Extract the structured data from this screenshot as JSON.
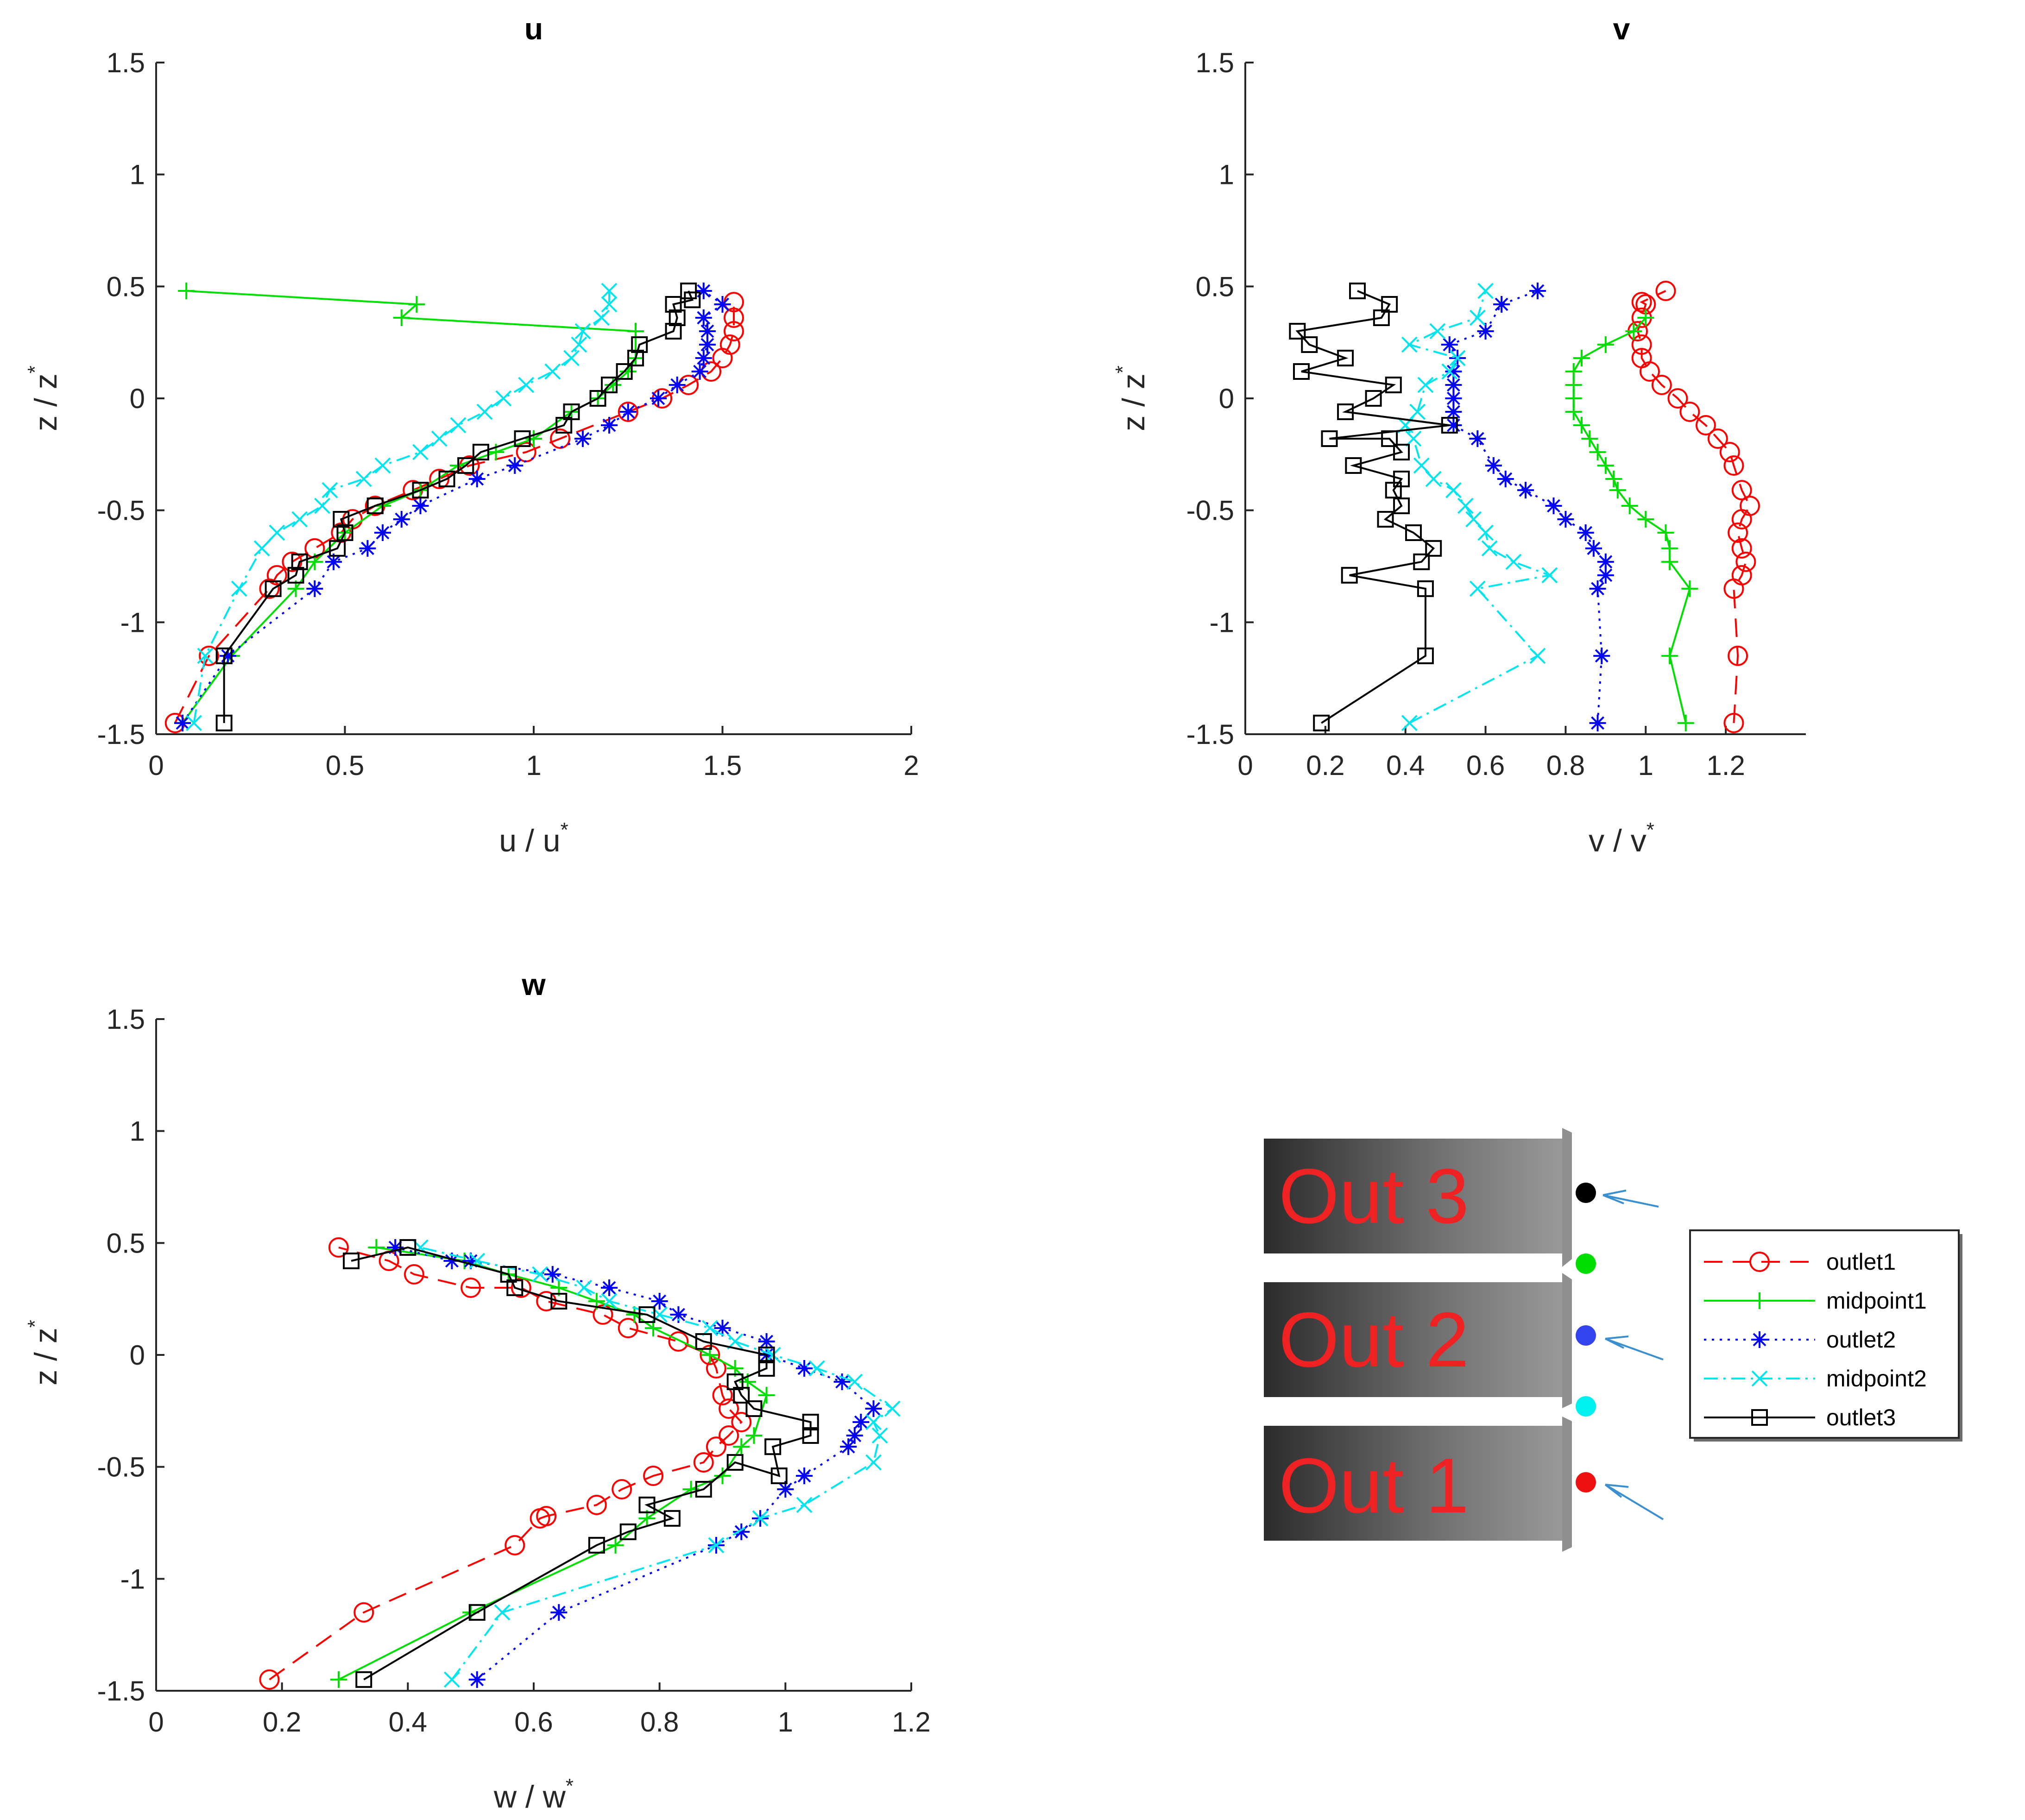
{
  "colors": {
    "outlet1": "#ff0000",
    "midpoint1": "#00dd00",
    "outlet2": "#0000ff",
    "midpoint2": "#00e5ee",
    "outlet3": "#000000",
    "axis": "#262626",
    "arrow": "#3a8fd0"
  },
  "legend": [
    {
      "name": "outlet1",
      "label": "outlet1"
    },
    {
      "name": "midpoint1",
      "label": "midpoint1"
    },
    {
      "name": "outlet2",
      "label": "outlet2"
    },
    {
      "name": "midpoint2",
      "label": "midpoint2"
    },
    {
      "name": "outlet3",
      "label": "outlet3"
    }
  ],
  "diagram": {
    "boxes": [
      {
        "label": "Out 3",
        "dot_color": "#000000",
        "arrow": true
      },
      {
        "label": "Out 2",
        "dot_color": "#3344ee",
        "arrow": true
      },
      {
        "label": "Out 1",
        "dot_color": "#ee1111",
        "arrow": true
      }
    ],
    "midpoint_dots": [
      "#00dd00",
      "#00f0f0"
    ]
  },
  "chart_data": [
    {
      "type": "line",
      "title": "u",
      "xlabel": "u / u",
      "xlabel_sup": "*",
      "ylabel": "z / z",
      "ylabel_sup": "*",
      "xlim": [
        0,
        2
      ],
      "ylim": [
        -1.5,
        1.5
      ],
      "xticks": [
        0,
        0.5,
        1,
        1.5,
        2
      ],
      "xtick_labels": [
        "0",
        "0.5",
        "1",
        "1.5",
        "2"
      ],
      "yticks": [
        -1.5,
        -1,
        -0.5,
        0,
        0.5,
        1,
        1.5
      ],
      "ytick_labels": [
        "-1.5",
        "-1",
        "-0.5",
        "0",
        "0.5",
        "1",
        "1.5"
      ],
      "series": [
        {
          "name": "outlet1",
          "x": [
            0.05,
            0.14,
            0.3,
            0.32,
            0.36,
            0.42,
            0.49,
            0.52,
            0.58,
            0.68,
            0.75,
            0.83,
            0.98,
            1.07,
            1.25,
            1.34,
            1.41,
            1.47,
            1.5,
            1.52,
            1.53,
            1.53,
            1.53
          ],
          "y": [
            -1.45,
            -1.15,
            -0.85,
            -0.79,
            -0.73,
            -0.67,
            -0.6,
            -0.54,
            -0.48,
            -0.41,
            -0.36,
            -0.3,
            -0.24,
            -0.18,
            -0.06,
            0,
            0.06,
            0.12,
            0.18,
            0.24,
            0.3,
            0.36,
            0.43
          ]
        },
        {
          "name": "midpoint1",
          "x": [
            0.07,
            0.2,
            0.37,
            0.42,
            0.5,
            0.6,
            0.7,
            0.8,
            0.9,
            1.0,
            1.1,
            1.17,
            1.21,
            1.25,
            1.27,
            1.27,
            0.65,
            0.69,
            0.08
          ],
          "y": [
            -1.45,
            -1.15,
            -0.85,
            -0.73,
            -0.6,
            -0.48,
            -0.41,
            -0.3,
            -0.24,
            -0.18,
            -0.06,
            0,
            0.06,
            0.12,
            0.18,
            0.3,
            0.36,
            0.42,
            0.48
          ]
        },
        {
          "name": "outlet2",
          "x": [
            0.07,
            0.19,
            0.42,
            0.47,
            0.56,
            0.6,
            0.65,
            0.7,
            0.85,
            0.95,
            1.13,
            1.2,
            1.25,
            1.33,
            1.38,
            1.44,
            1.45,
            1.46,
            1.46,
            1.45,
            1.5,
            1.45
          ],
          "y": [
            -1.45,
            -1.15,
            -0.85,
            -0.73,
            -0.67,
            -0.6,
            -0.54,
            -0.48,
            -0.36,
            -0.3,
            -0.18,
            -0.12,
            -0.06,
            0,
            0.06,
            0.12,
            0.18,
            0.24,
            0.3,
            0.36,
            0.42,
            0.48
          ]
        },
        {
          "name": "midpoint2",
          "x": [
            0.1,
            0.13,
            0.22,
            0.28,
            0.32,
            0.38,
            0.44,
            0.46,
            0.55,
            0.6,
            0.7,
            0.75,
            0.8,
            0.87,
            0.92,
            0.98,
            1.05,
            1.1,
            1.12,
            1.13,
            1.18,
            1.2,
            1.2
          ],
          "y": [
            -1.45,
            -1.15,
            -0.85,
            -0.67,
            -0.6,
            -0.54,
            -0.48,
            -0.41,
            -0.36,
            -0.3,
            -0.24,
            -0.18,
            -0.12,
            -0.06,
            0,
            0.06,
            0.12,
            0.18,
            0.24,
            0.3,
            0.36,
            0.42,
            0.48
          ]
        },
        {
          "name": "outlet3",
          "x": [
            0.18,
            0.18,
            0.31,
            0.37,
            0.38,
            0.48,
            0.5,
            0.49,
            0.58,
            0.7,
            0.77,
            0.82,
            0.86,
            0.97,
            1.08,
            1.1,
            1.17,
            1.2,
            1.24,
            1.27,
            1.28,
            1.37,
            1.38,
            1.37,
            1.42,
            1.41
          ],
          "y": [
            -1.45,
            -1.15,
            -0.85,
            -0.79,
            -0.73,
            -0.67,
            -0.6,
            -0.54,
            -0.48,
            -0.41,
            -0.36,
            -0.3,
            -0.24,
            -0.18,
            -0.12,
            -0.06,
            0,
            0.06,
            0.12,
            0.18,
            0.24,
            0.3,
            0.36,
            0.42,
            0.44,
            0.48
          ]
        }
      ]
    },
    {
      "type": "line",
      "title": "v",
      "xlabel": "v / v",
      "xlabel_sup": "*",
      "ylabel": "z / z",
      "ylabel_sup": "*",
      "xlim": [
        0,
        1.4
      ],
      "ylim": [
        -1.5,
        1.5
      ],
      "xticks": [
        0,
        0.2,
        0.4,
        0.6,
        0.8,
        1,
        1.2
      ],
      "xtick_labels": [
        "0",
        "0.2",
        "0.4",
        "0.6",
        "0.8",
        "1",
        "1.2"
      ],
      "yticks": [
        -1.5,
        -1,
        -0.5,
        0,
        0.5,
        1,
        1.5
      ],
      "ytick_labels": [
        "-1.5",
        "-1",
        "-0.5",
        "0",
        "0.5",
        "1",
        "1.5"
      ],
      "series": [
        {
          "name": "outlet1",
          "x": [
            1.22,
            1.23,
            1.22,
            1.24,
            1.25,
            1.24,
            1.23,
            1.24,
            1.26,
            1.24,
            1.22,
            1.21,
            1.18,
            1.15,
            1.11,
            1.08,
            1.04,
            1.01,
            0.99,
            0.99,
            0.98,
            0.99,
            1.0,
            0.99,
            1.05
          ],
          "y": [
            -1.45,
            -1.15,
            -0.85,
            -0.79,
            -0.73,
            -0.67,
            -0.6,
            -0.54,
            -0.48,
            -0.41,
            -0.3,
            -0.24,
            -0.18,
            -0.12,
            -0.06,
            0,
            0.06,
            0.12,
            0.18,
            0.24,
            0.3,
            0.36,
            0.42,
            0.43,
            0.48
          ]
        },
        {
          "name": "midpoint1",
          "x": [
            1.1,
            1.06,
            1.11,
            1.06,
            1.06,
            1.05,
            1.0,
            0.96,
            0.93,
            0.92,
            0.9,
            0.88,
            0.86,
            0.84,
            0.82,
            0.82,
            0.82,
            0.82,
            0.84,
            0.9,
            0.97,
            1.0
          ],
          "y": [
            -1.45,
            -1.15,
            -0.85,
            -0.73,
            -0.67,
            -0.6,
            -0.54,
            -0.48,
            -0.41,
            -0.36,
            -0.3,
            -0.24,
            -0.18,
            -0.12,
            -0.06,
            0,
            0.06,
            0.12,
            0.18,
            0.24,
            0.3,
            0.36
          ]
        },
        {
          "name": "outlet2",
          "x": [
            0.88,
            0.89,
            0.88,
            0.9,
            0.9,
            0.87,
            0.85,
            0.8,
            0.77,
            0.7,
            0.65,
            0.62,
            0.58,
            0.52,
            0.52,
            0.52,
            0.52,
            0.52,
            0.53,
            0.51,
            0.6,
            0.64,
            0.73
          ],
          "y": [
            -1.45,
            -1.15,
            -0.85,
            -0.79,
            -0.73,
            -0.67,
            -0.6,
            -0.54,
            -0.48,
            -0.41,
            -0.36,
            -0.3,
            -0.18,
            -0.12,
            -0.06,
            0,
            0.06,
            0.12,
            0.18,
            0.24,
            0.3,
            0.42,
            0.48
          ]
        },
        {
          "name": "midpoint2",
          "x": [
            0.41,
            0.73,
            0.58,
            0.76,
            0.67,
            0.61,
            0.6,
            0.57,
            0.55,
            0.52,
            0.47,
            0.44,
            0.42,
            0.4,
            0.43,
            0.45,
            0.51,
            0.53,
            0.41,
            0.48,
            0.58,
            0.6
          ],
          "y": [
            -1.45,
            -1.15,
            -0.85,
            -0.79,
            -0.73,
            -0.67,
            -0.6,
            -0.54,
            -0.48,
            -0.41,
            -0.36,
            -0.3,
            -0.18,
            -0.12,
            -0.06,
            0.06,
            0.12,
            0.18,
            0.24,
            0.3,
            0.36,
            0.48
          ]
        },
        {
          "name": "outlet3",
          "x": [
            0.19,
            0.45,
            0.45,
            0.26,
            0.44,
            0.47,
            0.42,
            0.35,
            0.39,
            0.37,
            0.39,
            0.27,
            0.39,
            0.36,
            0.21,
            0.51,
            0.25,
            0.32,
            0.37,
            0.14,
            0.25,
            0.16,
            0.13,
            0.34,
            0.36,
            0.28
          ],
          "y": [
            -1.45,
            -1.15,
            -0.85,
            -0.79,
            -0.73,
            -0.67,
            -0.6,
            -0.54,
            -0.48,
            -0.41,
            -0.36,
            -0.3,
            -0.24,
            -0.18,
            -0.18,
            -0.12,
            -0.06,
            0,
            0.06,
            0.12,
            0.18,
            0.24,
            0.3,
            0.36,
            0.42,
            0.48
          ]
        }
      ]
    },
    {
      "type": "line",
      "title": "w",
      "xlabel": "w / w",
      "xlabel_sup": "*",
      "ylabel": "z / z",
      "ylabel_sup": "*",
      "xlim": [
        0,
        1.2
      ],
      "ylim": [
        -1.5,
        1.5
      ],
      "xticks": [
        0,
        0.2,
        0.4,
        0.6,
        0.8,
        1,
        1.2
      ],
      "xtick_labels": [
        "0",
        "0.2",
        "0.4",
        "0.6",
        "0.8",
        "1",
        "1.2"
      ],
      "yticks": [
        -1.5,
        -1,
        -0.5,
        0,
        0.5,
        1,
        1.5
      ],
      "ytick_labels": [
        "-1.5",
        "-1",
        "-0.5",
        "0",
        "0.5",
        "1",
        "1.5"
      ],
      "series": [
        {
          "name": "outlet1",
          "x": [
            0.18,
            0.33,
            0.57,
            0.61,
            0.62,
            0.7,
            0.74,
            0.79,
            0.87,
            0.89,
            0.91,
            0.93,
            0.91,
            0.9,
            0.89,
            0.88,
            0.83,
            0.75,
            0.71,
            0.62,
            0.58,
            0.5,
            0.41,
            0.37,
            0.29
          ],
          "y": [
            -1.45,
            -1.15,
            -0.85,
            -0.73,
            -0.72,
            -0.67,
            -0.6,
            -0.54,
            -0.48,
            -0.41,
            -0.36,
            -0.3,
            -0.24,
            -0.18,
            -0.06,
            0,
            0.06,
            0.12,
            0.18,
            0.24,
            0.3,
            0.3,
            0.36,
            0.42,
            0.48
          ]
        },
        {
          "name": "midpoint1",
          "x": [
            0.29,
            0.5,
            0.73,
            0.78,
            0.85,
            0.9,
            0.93,
            0.95,
            0.97,
            0.94,
            0.92,
            0.88,
            0.79,
            0.76,
            0.7,
            0.64,
            0.56,
            0.49,
            0.35
          ],
          "y": [
            -1.45,
            -1.15,
            -0.85,
            -0.73,
            -0.6,
            -0.54,
            -0.41,
            -0.36,
            -0.18,
            -0.12,
            -0.06,
            0,
            0.12,
            0.18,
            0.24,
            0.3,
            0.36,
            0.42,
            0.48
          ]
        },
        {
          "name": "outlet2",
          "x": [
            0.51,
            0.64,
            0.89,
            0.93,
            0.96,
            1.0,
            1.03,
            1.1,
            1.11,
            1.12,
            1.14,
            1.09,
            1.03,
            0.97,
            0.97,
            0.9,
            0.83,
            0.8,
            0.72,
            0.63,
            0.5,
            0.47,
            0.38
          ],
          "y": [
            -1.45,
            -1.15,
            -0.85,
            -0.79,
            -0.73,
            -0.6,
            -0.54,
            -0.41,
            -0.36,
            -0.3,
            -0.24,
            -0.12,
            -0.06,
            0,
            0.06,
            0.12,
            0.18,
            0.24,
            0.3,
            0.36,
            0.42,
            0.42,
            0.48
          ]
        },
        {
          "name": "midpoint2",
          "x": [
            0.47,
            0.55,
            0.89,
            0.96,
            1.03,
            1.14,
            1.15,
            1.14,
            1.17,
            1.11,
            1.05,
            0.98,
            0.92,
            0.88,
            0.8,
            0.72,
            0.68,
            0.61,
            0.51,
            0.42
          ],
          "y": [
            -1.45,
            -1.15,
            -0.85,
            -0.73,
            -0.67,
            -0.48,
            -0.36,
            -0.3,
            -0.24,
            -0.12,
            -0.06,
            0,
            0.06,
            0.12,
            0.18,
            0.24,
            0.3,
            0.36,
            0.42,
            0.48
          ]
        },
        {
          "name": "outlet3",
          "x": [
            0.33,
            0.51,
            0.7,
            0.75,
            0.82,
            0.78,
            0.87,
            0.92,
            0.99,
            0.98,
            1.04,
            1.04,
            0.95,
            0.93,
            0.92,
            0.97,
            0.97,
            0.87,
            0.78,
            0.64,
            0.57,
            0.56,
            0.4,
            0.31
          ],
          "y": [
            -1.45,
            -1.15,
            -0.85,
            -0.79,
            -0.73,
            -0.67,
            -0.6,
            -0.48,
            -0.54,
            -0.41,
            -0.36,
            -0.3,
            -0.24,
            -0.18,
            -0.12,
            -0.06,
            0,
            0.06,
            0.18,
            0.24,
            0.3,
            0.36,
            0.48,
            0.42
          ]
        }
      ]
    }
  ]
}
